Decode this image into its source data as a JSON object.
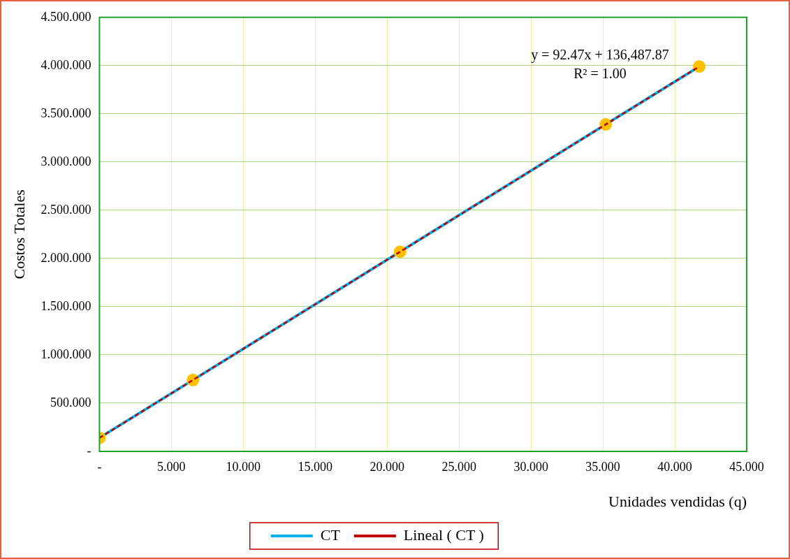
{
  "chart_data": {
    "type": "line",
    "xlabel": "Unidades vendidas (q)",
    "ylabel": "Costos Totales",
    "x": [
      0,
      6500,
      20900,
      35200,
      41700
    ],
    "series": [
      {
        "name": "CT",
        "color": "#00b0f0",
        "marker": "circle",
        "values": [
          140000,
          740000,
          2070000,
          3390000,
          3990000
        ]
      },
      {
        "name": "Lineal ( CT )",
        "type": "line",
        "color": "#c00000",
        "line_style": "dashed",
        "marker": "none",
        "x": [
          0,
          41700
        ],
        "values": [
          140000,
          3990000
        ]
      }
    ],
    "annotations": [
      "y = 92.47x + 136,487.87",
      "R² = 1.00"
    ],
    "xlim": [
      0,
      45000
    ],
    "xticks": [
      {
        "value": 0,
        "label": "-"
      },
      {
        "value": 5000,
        "label": "5.000"
      },
      {
        "value": 10000,
        "label": "10.000"
      },
      {
        "value": 15000,
        "label": "15.000"
      },
      {
        "value": 20000,
        "label": "20.000"
      },
      {
        "value": 25000,
        "label": "25.000"
      },
      {
        "value": 30000,
        "label": "30.000"
      },
      {
        "value": 35000,
        "label": "35.000"
      },
      {
        "value": 40000,
        "label": "40.000"
      },
      {
        "value": 45000,
        "label": "45.000"
      }
    ],
    "ylim": [
      0,
      4500000
    ],
    "yticks": [
      {
        "value": 0,
        "label": "-"
      },
      {
        "value": 500000,
        "label": "500.000"
      },
      {
        "value": 1000000,
        "label": "1.000.000"
      },
      {
        "value": 1500000,
        "label": "1.500.000"
      },
      {
        "value": 2000000,
        "label": "2.000.000"
      },
      {
        "value": 2500000,
        "label": "2.500.000"
      },
      {
        "value": 3000000,
        "label": "3.000.000"
      },
      {
        "value": 3500000,
        "label": "3.500.000"
      },
      {
        "value": 4000000,
        "label": "4.000.000"
      },
      {
        "value": 4500000,
        "label": "4.500.000"
      }
    ],
    "grid": true,
    "legend": "bottom"
  }
}
